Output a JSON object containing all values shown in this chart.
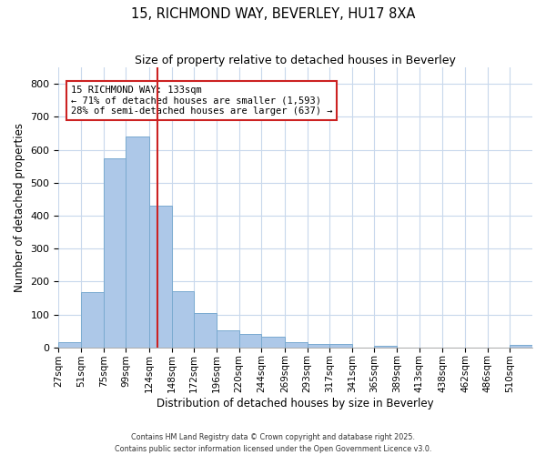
{
  "title1": "15, RICHMOND WAY, BEVERLEY, HU17 8XA",
  "title2": "Size of property relative to detached houses in Beverley",
  "xlabel": "Distribution of detached houses by size in Beverley",
  "ylabel": "Number of detached properties",
  "bar_color": "#adc8e8",
  "bar_edge_color": "#7aaad0",
  "categories": [
    "27sqm",
    "51sqm",
    "75sqm",
    "99sqm",
    "124sqm",
    "148sqm",
    "172sqm",
    "196sqm",
    "220sqm",
    "244sqm",
    "269sqm",
    "293sqm",
    "317sqm",
    "341sqm",
    "365sqm",
    "389sqm",
    "413sqm",
    "438sqm",
    "462sqm",
    "486sqm",
    "510sqm"
  ],
  "values": [
    17,
    168,
    575,
    640,
    430,
    170,
    103,
    52,
    40,
    32,
    15,
    10,
    10,
    0,
    5,
    0,
    0,
    0,
    0,
    0,
    7
  ],
  "bin_edges": [
    27,
    51,
    75,
    99,
    124,
    148,
    172,
    196,
    220,
    244,
    269,
    293,
    317,
    341,
    365,
    389,
    413,
    438,
    462,
    486,
    510,
    534
  ],
  "property_size": 133,
  "red_line_x": 133,
  "annotation_title": "15 RICHMOND WAY: 133sqm",
  "annotation_line1": "← 71% of detached houses are smaller (1,593)",
  "annotation_line2": "28% of semi-detached houses are larger (637) →",
  "annotation_box_color": "white",
  "annotation_box_edge_color": "#cc2222",
  "red_line_color": "#cc2222",
  "grid_color": "#c8d8ec",
  "background_color": "white",
  "ylim": [
    0,
    850
  ],
  "yticks": [
    0,
    100,
    200,
    300,
    400,
    500,
    600,
    700,
    800
  ],
  "footnote1": "Contains HM Land Registry data © Crown copyright and database right 2025.",
  "footnote2": "Contains public sector information licensed under the Open Government Licence v3.0."
}
